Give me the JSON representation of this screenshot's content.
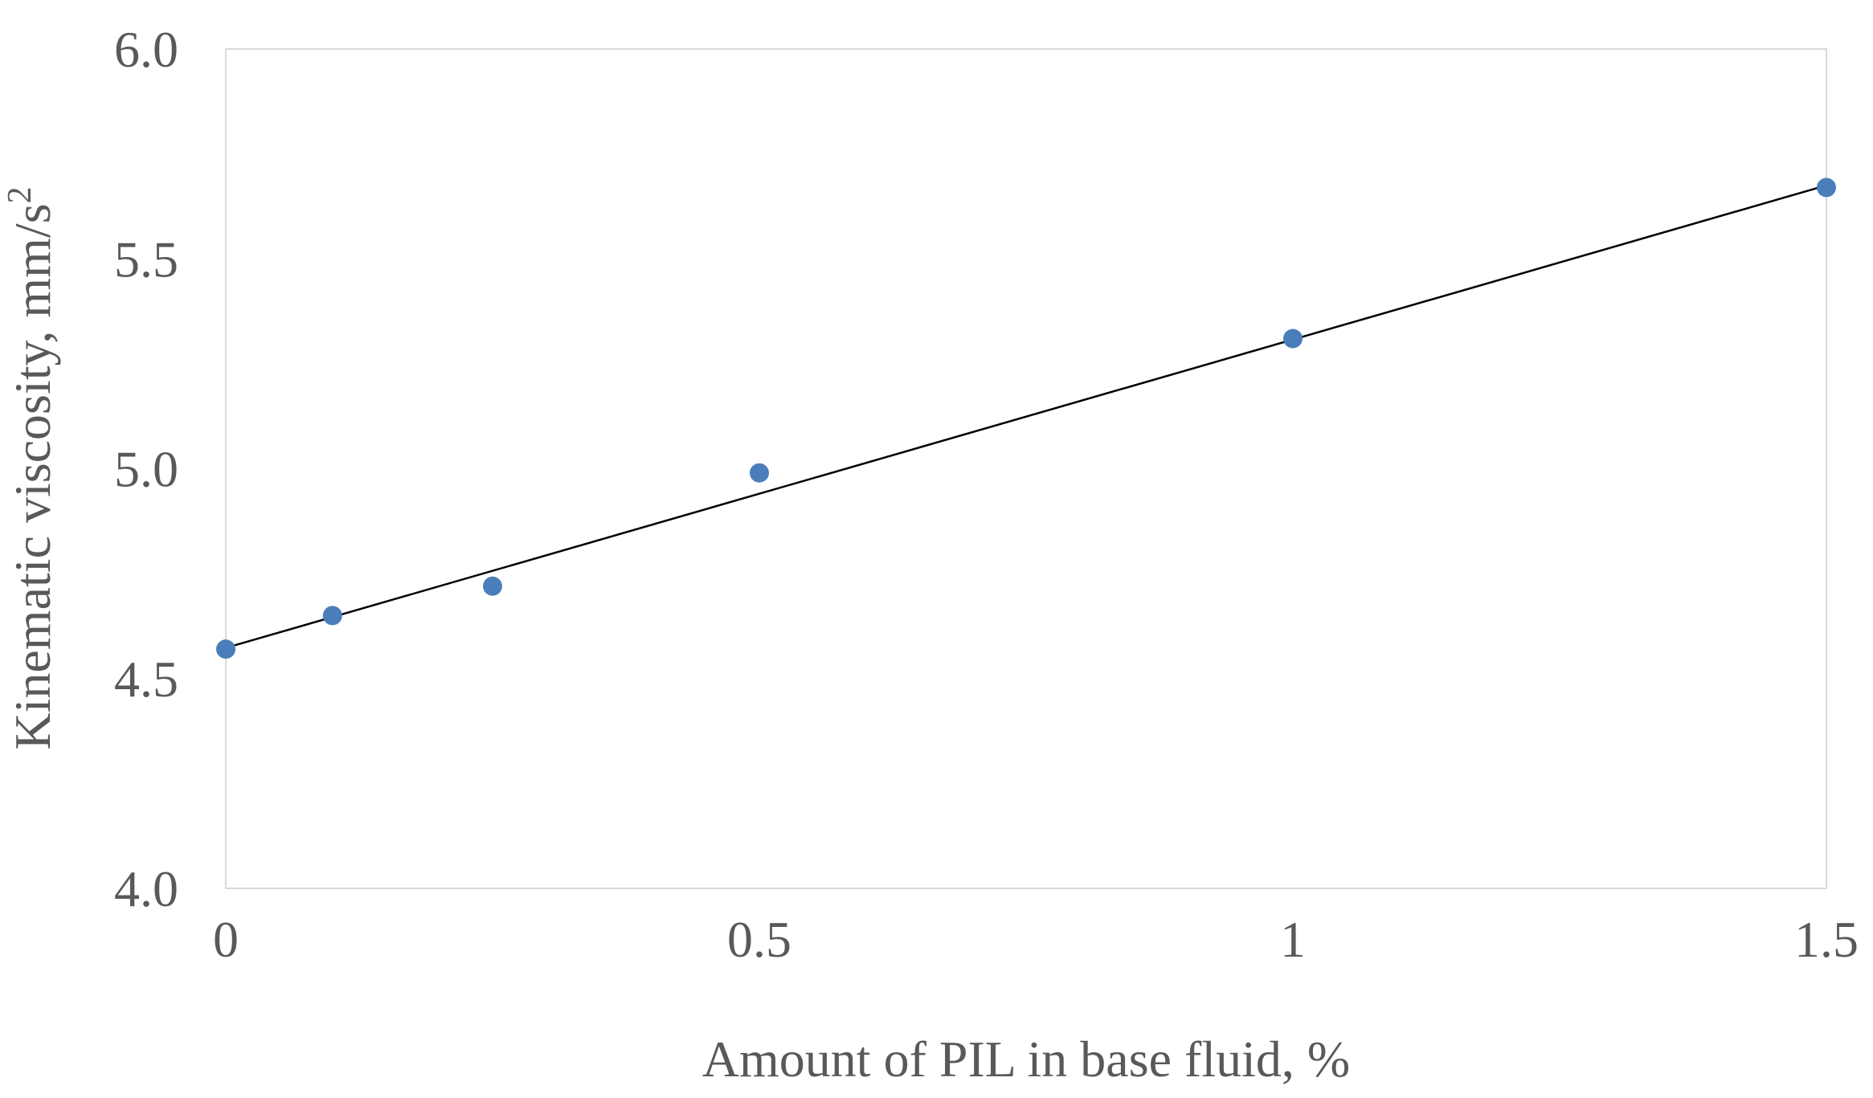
{
  "chart_data": {
    "type": "scatter",
    "title": "",
    "xlabel": "Amount of PIL  in base fluid, %",
    "ylabel": "Kinematic viscosity, mm/s",
    "ylabel_superscript": "2",
    "xlim": [
      0,
      1.5
    ],
    "ylim": [
      4.0,
      6.0
    ],
    "x_ticks": [
      "0",
      "0.5",
      "1",
      "1.5"
    ],
    "y_ticks": [
      "4.0",
      "4.5",
      "5.0",
      "5.5",
      "6.0"
    ],
    "grid": false,
    "legend": "none",
    "series": [
      {
        "points": [
          {
            "x": 0,
            "y": 4.57
          },
          {
            "x": 0.1,
            "y": 4.65
          },
          {
            "x": 0.25,
            "y": 4.72
          },
          {
            "x": 0.5,
            "y": 4.99
          },
          {
            "x": 1.0,
            "y": 5.31
          },
          {
            "x": 1.5,
            "y": 5.67
          }
        ],
        "color": "#4a7ebb"
      }
    ],
    "trendline": {
      "type": "linear",
      "from": {
        "x": 0,
        "y": 4.573
      },
      "to": {
        "x": 1.5,
        "y": 5.675
      },
      "color": "#000000"
    },
    "frame_color": "#d9d9d9"
  }
}
